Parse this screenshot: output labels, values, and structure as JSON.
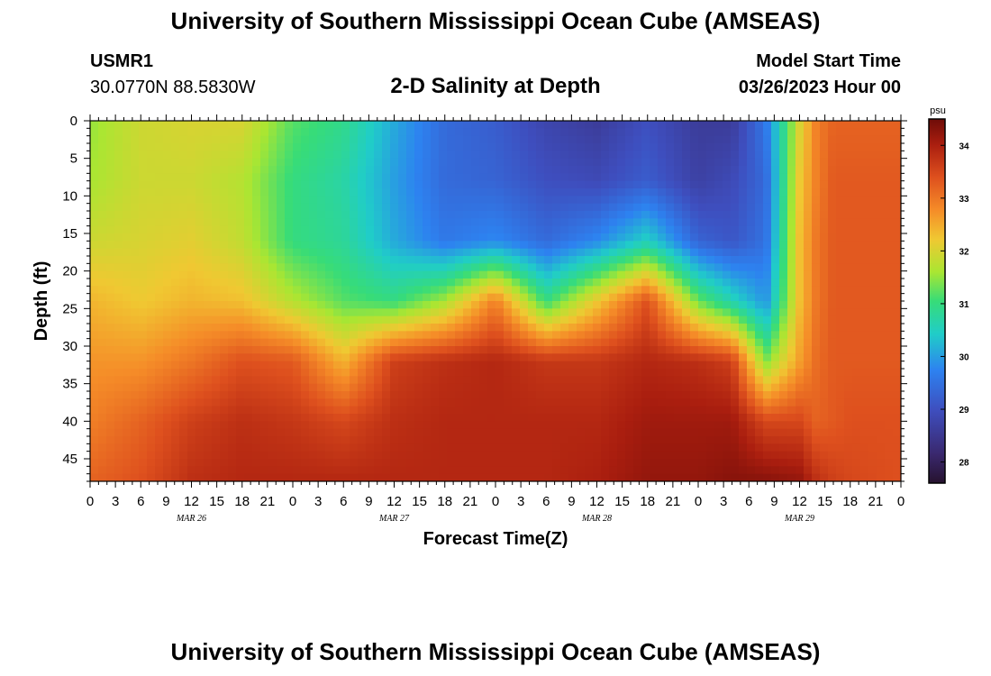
{
  "header": {
    "title": "University of Southern Mississippi Ocean Cube (AMSEAS)",
    "station": "USMR1",
    "coords": "30.0770N  88.5830W",
    "plot_title": "2-D Salinity at Depth",
    "model_label": "Model Start Time",
    "model_time": "03/26/2023 Hour 00"
  },
  "footer": {
    "title": "University of Southern Mississippi Ocean Cube (AMSEAS)"
  },
  "chart_data": {
    "type": "heatmap",
    "title": "2-D Salinity at Depth",
    "xlabel": "Forecast Time(Z)",
    "ylabel": "Depth (ft)",
    "x_range_hours": [
      0,
      96
    ],
    "y_range_ft": [
      0,
      48
    ],
    "x_tick_labels": [
      "0",
      "3",
      "6",
      "9",
      "12",
      "15",
      "18",
      "21",
      "0",
      "3",
      "6",
      "9",
      "12",
      "15",
      "18",
      "21",
      "0",
      "3",
      "6",
      "9",
      "12",
      "15",
      "18",
      "21",
      "0",
      "3",
      "6",
      "9",
      "12",
      "15",
      "18",
      "21",
      "0"
    ],
    "date_labels": [
      {
        "label": "MAR 26",
        "hour": 12
      },
      {
        "label": "MAR 27",
        "hour": 36
      },
      {
        "label": "MAR 28",
        "hour": 60
      },
      {
        "label": "MAR 29",
        "hour": 84
      }
    ],
    "y_ticks": [
      0,
      5,
      10,
      15,
      20,
      25,
      30,
      35,
      40,
      45
    ],
    "colorbar": {
      "unit": "psu",
      "min": 27.6,
      "max": 34.5,
      "ticks": [
        28,
        29,
        30,
        31,
        32,
        33,
        34
      ]
    },
    "profile_hours": [
      0,
      6,
      12,
      18,
      24,
      30,
      36,
      42,
      48,
      54,
      60,
      66,
      72,
      76,
      80,
      84,
      86,
      88,
      90,
      96
    ],
    "profile_depths_ft": [
      0,
      8,
      16,
      24,
      32,
      40,
      48
    ],
    "salinity_psu": [
      [
        31.5,
        31.6,
        31.9,
        32.4,
        32.7,
        32.9,
        33.2
      ],
      [
        31.9,
        31.9,
        32.0,
        32.2,
        32.7,
        33.2,
        33.4
      ],
      [
        32.0,
        31.9,
        32.1,
        32.4,
        33.0,
        33.6,
        33.8
      ],
      [
        32.0,
        31.7,
        31.8,
        32.3,
        33.4,
        33.8,
        33.9
      ],
      [
        31.2,
        31.0,
        31.0,
        31.7,
        33.3,
        33.7,
        33.9
      ],
      [
        30.9,
        30.7,
        30.8,
        31.2,
        32.4,
        33.5,
        33.9
      ],
      [
        30.1,
        30.0,
        30.1,
        31.0,
        33.6,
        33.8,
        33.9
      ],
      [
        29.4,
        29.4,
        29.6,
        31.6,
        33.8,
        33.9,
        33.9
      ],
      [
        29.2,
        29.3,
        29.8,
        32.9,
        33.9,
        33.9,
        33.9
      ],
      [
        28.8,
        29.0,
        29.4,
        31.0,
        33.7,
        33.9,
        33.9
      ],
      [
        28.6,
        28.9,
        29.8,
        32.2,
        33.7,
        33.9,
        34.0
      ],
      [
        29.0,
        29.2,
        30.5,
        33.4,
        33.9,
        34.1,
        34.2
      ],
      [
        28.6,
        28.7,
        29.3,
        31.3,
        33.8,
        34.1,
        34.2
      ],
      [
        28.6,
        28.9,
        29.1,
        30.6,
        33.6,
        34.1,
        34.3
      ],
      [
        29.6,
        29.4,
        29.5,
        29.9,
        31.4,
        33.5,
        34.3
      ],
      [
        32.0,
        32.2,
        32.3,
        32.3,
        32.6,
        33.5,
        34.2
      ],
      [
        32.9,
        32.9,
        33.0,
        33.0,
        33.1,
        33.2,
        33.8
      ],
      [
        33.2,
        33.3,
        33.3,
        33.3,
        33.3,
        33.3,
        33.6
      ],
      [
        33.2,
        33.3,
        33.3,
        33.3,
        33.3,
        33.4,
        33.5
      ],
      [
        33.2,
        33.3,
        33.3,
        33.3,
        33.3,
        33.4,
        33.4
      ]
    ]
  }
}
